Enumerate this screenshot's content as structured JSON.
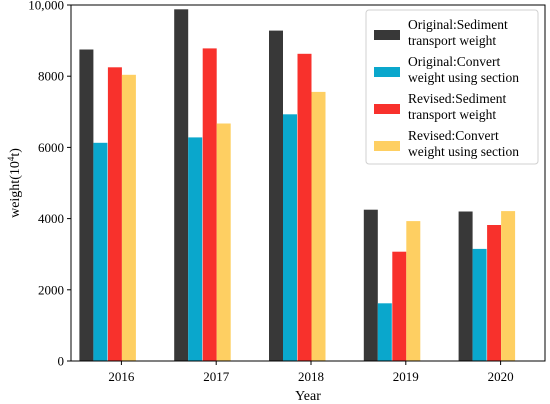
{
  "chart_data": {
    "type": "bar",
    "xlabel": "Year",
    "ylabel_main": "weight(10",
    "ylabel_sup": "4",
    "ylabel_tail": "t)",
    "categories": [
      "2016",
      "2017",
      "2018",
      "2019",
      "2020"
    ],
    "ylim": [
      0,
      10000
    ],
    "yticks": [
      0,
      2000,
      4000,
      6000,
      8000,
      10000
    ],
    "ytick_labels": [
      "0",
      "2000",
      "4000",
      "6000",
      "8000",
      "10,000"
    ],
    "grid": false,
    "legend_position": "top-right",
    "series": [
      {
        "name_lines": [
          "Original:Sediment",
          "transport weight"
        ],
        "color": "#383838",
        "values": [
          8750,
          9880,
          9280,
          4250,
          4200
        ]
      },
      {
        "name_lines": [
          "Original:Convert",
          "weight using section"
        ],
        "color": "#0aa7cc",
        "values": [
          6130,
          6280,
          6930,
          1620,
          3150
        ]
      },
      {
        "name_lines": [
          "Revised:Sediment",
          "transport weight"
        ],
        "color": "#f8312c",
        "values": [
          8250,
          8780,
          8630,
          3070,
          3820
        ]
      },
      {
        "name_lines": [
          "Revised:Convert",
          "weight using section"
        ],
        "color": "#fecf62",
        "values": [
          8040,
          6670,
          7560,
          3930,
          4210
        ]
      }
    ]
  }
}
